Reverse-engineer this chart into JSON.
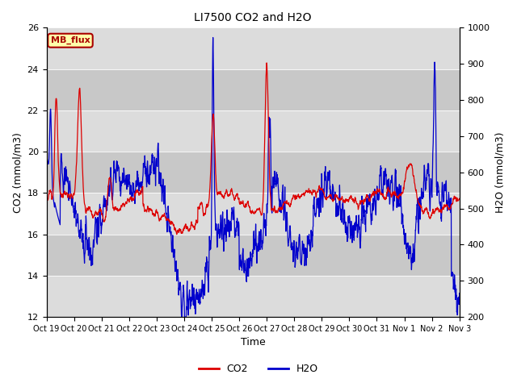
{
  "title": "LI7500 CO2 and H2O",
  "xlabel": "Time",
  "ylabel_left": "CO2 (mmol/m3)",
  "ylabel_right": "H2O (mmol/m3)",
  "ylim_left": [
    12,
    26
  ],
  "ylim_right": [
    200,
    1000
  ],
  "yticks_left": [
    12,
    14,
    16,
    18,
    20,
    22,
    24,
    26
  ],
  "yticks_right": [
    200,
    300,
    400,
    500,
    600,
    700,
    800,
    900,
    1000
  ],
  "xtick_labels": [
    "Oct 19",
    "Oct 20",
    "Oct 21",
    "Oct 22",
    "Oct 23",
    "Oct 24",
    "Oct 25",
    "Oct 26",
    "Oct 27",
    "Oct 28",
    "Oct 29",
    "Oct 30",
    "Oct 31",
    "Nov 1",
    "Nov 2",
    "Nov 3"
  ],
  "co2_color": "#DD0000",
  "h2o_color": "#0000CC",
  "bg_light": "#DCDCDC",
  "bg_dark": "#C8C8C8",
  "fig_bg": "#FFFFFF",
  "legend_label_co2": "CO2",
  "legend_label_h2o": "H2O",
  "annotation_text": "MB_flux",
  "annotation_color": "#AA0000",
  "annotation_bg": "#FFFFAA",
  "annotation_edge": "#AA0000",
  "seed": 123,
  "n_points": 2000,
  "title_fontsize": 10,
  "axis_fontsize": 9,
  "tick_fontsize": 8
}
